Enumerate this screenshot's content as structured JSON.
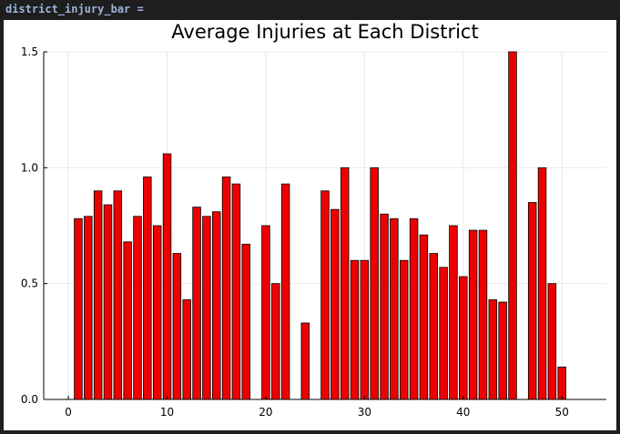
{
  "cell": {
    "label": "district_injury_bar ="
  },
  "chart_data": {
    "type": "bar",
    "title": "Average Injuries at Each District",
    "xlabel": "",
    "ylabel": "",
    "xlim": [
      -2.5,
      54.5
    ],
    "ylim": [
      0,
      1.5
    ],
    "xticks": [
      0,
      10,
      20,
      30,
      40,
      50
    ],
    "yticks": [
      0.0,
      0.5,
      1.0,
      1.5
    ],
    "ytick_labels": [
      "0.0",
      "0.5",
      "1.0",
      "1.5"
    ],
    "grid": true,
    "legend": "none",
    "bar_color": "#ee0000",
    "x": [
      1,
      2,
      3,
      4,
      5,
      6,
      7,
      8,
      9,
      10,
      11,
      12,
      13,
      14,
      15,
      16,
      17,
      18,
      19,
      20,
      21,
      22,
      23,
      24,
      25,
      26,
      27,
      28,
      29,
      30,
      31,
      32,
      33,
      34,
      35,
      36,
      37,
      38,
      39,
      40,
      41,
      42,
      43,
      44,
      45,
      46,
      47,
      48,
      49,
      50,
      51
    ],
    "values": [
      0.78,
      0.79,
      0.9,
      0.84,
      0.9,
      0.68,
      0.79,
      0.96,
      0.75,
      1.06,
      0.63,
      0.43,
      0.83,
      0.79,
      0.81,
      0.96,
      0.93,
      0.67,
      0.0,
      0.75,
      0.5,
      0.93,
      0.0,
      0.33,
      0.0,
      0.9,
      0.82,
      1.0,
      0.6,
      0.6,
      1.0,
      0.8,
      0.78,
      0.6,
      0.78,
      0.71,
      0.63,
      0.57,
      0.75,
      0.53,
      0.73,
      0.73,
      0.43,
      0.42,
      1.5,
      0.0,
      0.85,
      1.0,
      0.5,
      0.14,
      0.0
    ]
  }
}
